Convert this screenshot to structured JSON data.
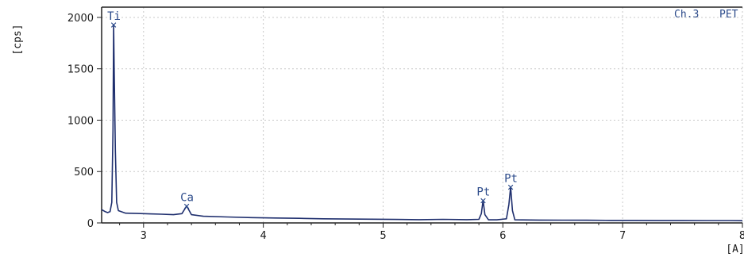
{
  "chart_data": {
    "type": "line",
    "title": "",
    "xlabel": "[A]",
    "ylabel": "[cps]",
    "xlim": [
      2.65,
      8.0
    ],
    "ylim": [
      0,
      2100
    ],
    "x_ticks": [
      3,
      4,
      5,
      6,
      7,
      8
    ],
    "x_tick_labels": [
      "3",
      "4",
      "5",
      "6",
      "7",
      "8"
    ],
    "y_ticks": [
      0,
      500,
      1000,
      1500,
      2000
    ],
    "y_tick_labels": [
      "0",
      "500",
      "1000",
      "1500",
      "2000"
    ],
    "grid": true,
    "channel_label": "Ch.3",
    "crystal_label": "PET",
    "series": [
      {
        "color": "#1f2f6e",
        "points": [
          [
            2.65,
            130
          ],
          [
            2.68,
            110
          ],
          [
            2.7,
            100
          ],
          [
            2.72,
            110
          ],
          [
            2.735,
            200
          ],
          [
            2.745,
            900
          ],
          [
            2.75,
            1930
          ],
          [
            2.755,
            1500
          ],
          [
            2.765,
            700
          ],
          [
            2.775,
            200
          ],
          [
            2.79,
            120
          ],
          [
            2.85,
            95
          ],
          [
            2.95,
            92
          ],
          [
            3.05,
            88
          ],
          [
            3.15,
            85
          ],
          [
            3.25,
            80
          ],
          [
            3.32,
            90
          ],
          [
            3.36,
            165
          ],
          [
            3.4,
            80
          ],
          [
            3.5,
            65
          ],
          [
            3.7,
            58
          ],
          [
            3.9,
            52
          ],
          [
            4.1,
            48
          ],
          [
            4.3,
            45
          ],
          [
            4.5,
            40
          ],
          [
            4.7,
            38
          ],
          [
            4.9,
            36
          ],
          [
            5.1,
            34
          ],
          [
            5.3,
            32
          ],
          [
            5.5,
            35
          ],
          [
            5.7,
            32
          ],
          [
            5.8,
            35
          ],
          [
            5.82,
            90
          ],
          [
            5.835,
            220
          ],
          [
            5.85,
            80
          ],
          [
            5.88,
            30
          ],
          [
            5.95,
            30
          ],
          [
            6.03,
            40
          ],
          [
            6.05,
            180
          ],
          [
            6.065,
            350
          ],
          [
            6.08,
            120
          ],
          [
            6.1,
            30
          ],
          [
            6.3,
            28
          ],
          [
            6.5,
            27
          ],
          [
            6.7,
            26
          ],
          [
            6.9,
            25
          ],
          [
            7.1,
            25
          ],
          [
            7.3,
            24
          ],
          [
            7.5,
            24
          ],
          [
            7.7,
            23
          ],
          [
            7.9,
            23
          ],
          [
            8.0,
            22
          ]
        ]
      }
    ],
    "annotations": [
      {
        "label": "Ti",
        "x": 2.75,
        "y": 1930
      },
      {
        "label": "Ca",
        "x": 3.36,
        "y": 165
      },
      {
        "label": "Pt",
        "x": 5.835,
        "y": 220
      },
      {
        "label": "Pt",
        "x": 6.065,
        "y": 350
      }
    ]
  }
}
